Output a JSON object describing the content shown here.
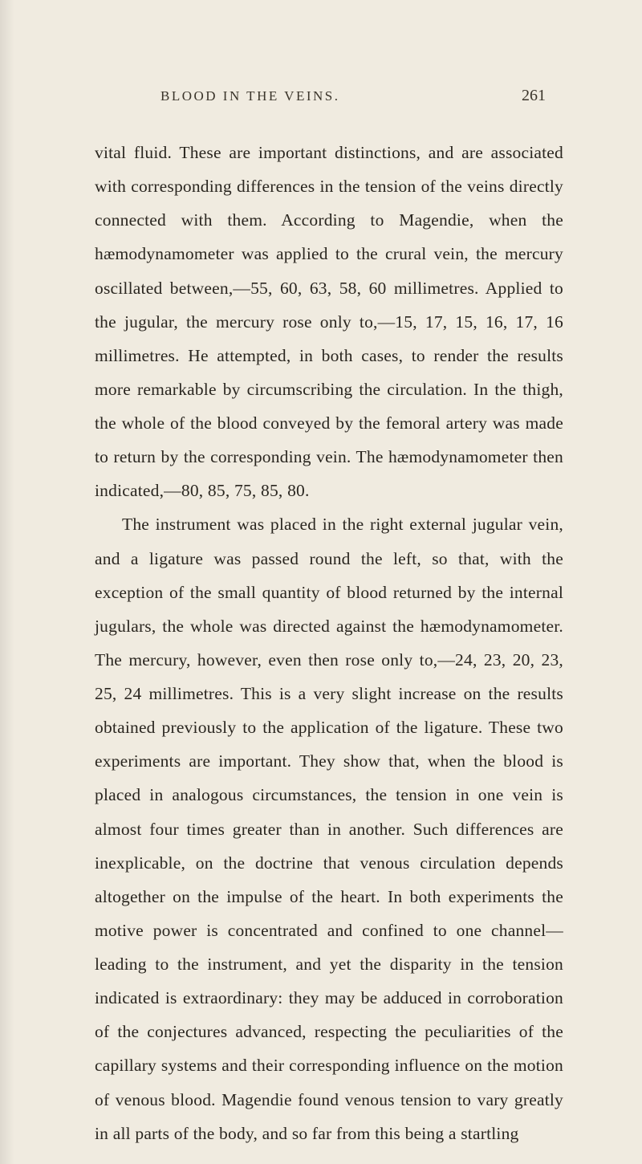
{
  "page": {
    "running_title": "BLOOD IN THE VEINS.",
    "page_number": "261",
    "paragraphs": [
      "vital fluid. These are important distinctions, and are associated with corresponding differences in the tension of the veins directly connected with them. According to Magendie, when the hæmodynamometer was applied to the crural vein, the mercury oscillated between,—55, 60, 63, 58, 60 millimetres. Applied to the jugular, the mercury rose only to,—15, 17, 15, 16, 17, 16 millimetres. He attempted, in both cases, to render the results more remarkable by circumscribing the circulation. In the thigh, the whole of the blood conveyed by the femoral artery was made to return by the corresponding vein. The hæmodynamometer then indicated,—80, 85, 75, 85, 80.",
      "The instrument was placed in the right external jugular vein, and a ligature was passed round the left, so that, with the exception of the small quantity of blood returned by the internal jugulars, the whole was directed against the hæmodynamometer. The mercury, however, even then rose only to,—24, 23, 20, 23, 25, 24 millimetres. This is a very slight increase on the results obtained previously to the application of the ligature. These two experiments are important. They show that, when the blood is placed in analogous circumstances, the tension in one vein is almost four times greater than in another. Such differences are inexplicable, on the doctrine that venous circulation depends altogether on the impulse of the heart. In both experiments the motive power is concentrated and confined to one channel—leading to the instrument, and yet the disparity in the tension indicated is extraordinary: they may be adduced in corroboration of the conjectures advanced, respecting the peculiarities of the capillary systems and their corresponding influence on the motion of venous blood. Magendie found venous tension to vary greatly in all parts of the body, and so far from this being a startling"
    ]
  },
  "colors": {
    "background": "#f0ebe0",
    "text": "#2a2620",
    "header_text": "#3a342a"
  },
  "typography": {
    "body_fontsize": 21.5,
    "body_lineheight": 1.96,
    "header_fontsize": 17,
    "pagenum_fontsize": 20,
    "header_letterspacing": 2.5
  }
}
